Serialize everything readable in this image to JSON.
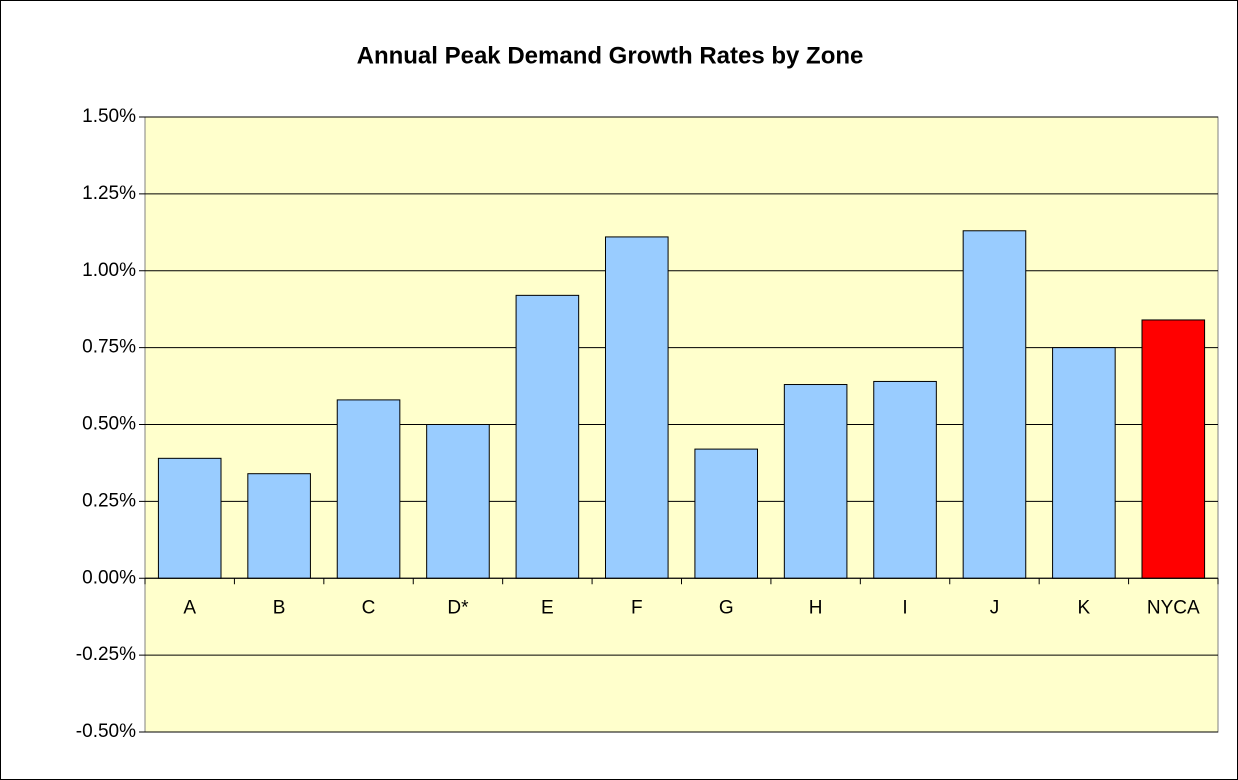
{
  "chart_data": {
    "type": "bar",
    "title": "Annual Peak Demand Growth Rates by Zone",
    "categories": [
      "A",
      "B",
      "C",
      "D*",
      "E",
      "F",
      "G",
      "H",
      "I",
      "J",
      "K",
      "NYCA"
    ],
    "values": [
      0.39,
      0.34,
      0.58,
      0.5,
      0.92,
      1.11,
      0.42,
      0.63,
      0.64,
      1.13,
      0.75,
      0.84
    ],
    "colors": [
      "#99ccff",
      "#99ccff",
      "#99ccff",
      "#99ccff",
      "#99ccff",
      "#99ccff",
      "#99ccff",
      "#99ccff",
      "#99ccff",
      "#99ccff",
      "#99ccff",
      "#ff0000"
    ],
    "ylim": [
      -0.5,
      1.5
    ],
    "yticks": [
      {
        "value": -0.5,
        "label": "-0.50%"
      },
      {
        "value": -0.25,
        "label": "-0.25%"
      },
      {
        "value": 0,
        "label": "0.00%"
      },
      {
        "value": 0.25,
        "label": "0.25%"
      },
      {
        "value": 0.5,
        "label": "0.50%"
      },
      {
        "value": 0.75,
        "label": "0.75%"
      },
      {
        "value": 1,
        "label": "1.00%"
      },
      {
        "value": 1.25,
        "label": "1.25%"
      },
      {
        "value": 1.5,
        "label": "1.50%"
      }
    ],
    "grid": true
  }
}
